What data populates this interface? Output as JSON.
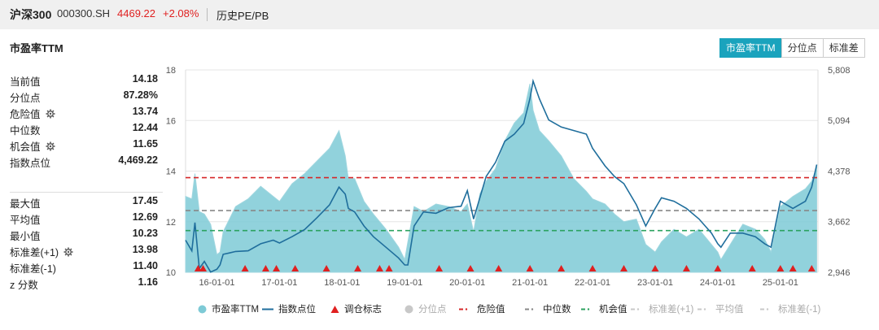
{
  "header": {
    "name": "沪深300",
    "code": "000300.SH",
    "price": "4469.22",
    "change": "+2.08%",
    "tab": "历史PE/PB"
  },
  "panel": {
    "title": "市盈率TTM",
    "buttons": [
      "市盈率TTM",
      "分位点",
      "标准差"
    ]
  },
  "stats_top": [
    {
      "label": "当前值",
      "value": "14.18",
      "gear": false
    },
    {
      "label": "分位点",
      "value": "87.28%",
      "gear": false
    },
    {
      "label": "危险值",
      "value": "13.74",
      "gear": true
    },
    {
      "label": "中位数",
      "value": "12.44",
      "gear": false
    },
    {
      "label": "机会值",
      "value": "11.65",
      "gear": true
    },
    {
      "label": "指数点位",
      "value": "4,469.22",
      "gear": false
    }
  ],
  "stats_bottom": [
    {
      "label": "最大值",
      "value": "17.45",
      "gear": false
    },
    {
      "label": "平均值",
      "value": "12.69",
      "gear": false
    },
    {
      "label": "最小值",
      "value": "10.23",
      "gear": false
    },
    {
      "label": "标准差(+1)",
      "value": "13.98",
      "gear": true
    },
    {
      "label": "标准差(-1)",
      "value": "11.40",
      "gear": false
    },
    {
      "label": "z 分数",
      "value": "1.16",
      "gear": false
    }
  ],
  "legend": [
    {
      "label": "市盈率TTM",
      "type": "dot",
      "color": "#7ecad6",
      "off": false
    },
    {
      "label": "指数点位",
      "type": "line",
      "color": "#1f6e9c",
      "off": false
    },
    {
      "label": "调仓标志",
      "type": "triangle",
      "color": "#e02020",
      "off": false
    },
    {
      "label": "分位点",
      "type": "dot",
      "color": "#c8c8c8",
      "off": true
    },
    {
      "label": "危险值",
      "type": "dash",
      "color": "#d62728",
      "off": false
    },
    {
      "label": "中位数",
      "type": "dash",
      "color": "#888888",
      "off": false
    },
    {
      "label": "机会值",
      "type": "dash",
      "color": "#2ca25f",
      "off": false
    },
    {
      "label": "标准差(+1)",
      "type": "dash",
      "color": "#c8c8c8",
      "off": true
    },
    {
      "label": "平均值",
      "type": "dash",
      "color": "#c8c8c8",
      "off": true
    },
    {
      "label": "标准差(-1)",
      "type": "dash",
      "color": "#c8c8c8",
      "off": true
    }
  ],
  "chart_data": {
    "type": "area",
    "x_tick_labels": [
      "16-01-01",
      "17-01-01",
      "18-01-01",
      "19-01-01",
      "20-01-01",
      "21-01-01",
      "22-01-01",
      "23-01-01",
      "24-01-01",
      "25-01-01"
    ],
    "left_axis": {
      "ticks": [
        "10",
        "12",
        "14",
        "16",
        "18"
      ],
      "ylim": [
        10,
        18
      ]
    },
    "right_axis": {
      "ticks": [
        "2,946",
        "3,662",
        "4,378",
        "5,094",
        "5,808"
      ],
      "ylim": [
        2946,
        5808
      ]
    },
    "grid": true,
    "legend_position": "bottom",
    "series": [
      {
        "name": "市盈率TTM",
        "axis": "left",
        "color": "#7ecad6",
        "x": [
          2015.5,
          2015.6,
          2015.65,
          2015.72,
          2015.8,
          2015.9,
          2016.0,
          2016.05,
          2016.1,
          2016.2,
          2016.3,
          2016.5,
          2016.7,
          2016.9,
          2017.0,
          2017.2,
          2017.4,
          2017.6,
          2017.8,
          2017.95,
          2018.05,
          2018.1,
          2018.2,
          2018.35,
          2018.5,
          2018.7,
          2018.9,
          2019.0,
          2019.05,
          2019.15,
          2019.3,
          2019.5,
          2019.7,
          2019.9,
          2020.0,
          2020.1,
          2020.2,
          2020.3,
          2020.45,
          2020.6,
          2020.75,
          2020.9,
          2021.0,
          2021.05,
          2021.15,
          2021.3,
          2021.5,
          2021.7,
          2021.9,
          2022.0,
          2022.2,
          2022.35,
          2022.5,
          2022.7,
          2022.85,
          2023.0,
          2023.1,
          2023.3,
          2023.5,
          2023.7,
          2023.9,
          2024.0,
          2024.05,
          2024.2,
          2024.4,
          2024.6,
          2024.75,
          2024.85,
          2025.0,
          2025.2,
          2025.4,
          2025.5,
          2025.58
        ],
        "y": [
          13.0,
          12.9,
          13.9,
          12.4,
          12.3,
          11.9,
          10.7,
          10.8,
          11.6,
          12.1,
          12.6,
          12.9,
          13.4,
          13.0,
          12.8,
          13.5,
          13.9,
          14.4,
          14.9,
          15.6,
          14.6,
          13.7,
          13.7,
          12.8,
          12.3,
          11.7,
          11.0,
          10.5,
          11.2,
          12.6,
          12.4,
          12.7,
          12.6,
          12.4,
          12.7,
          11.6,
          13.1,
          13.6,
          14.1,
          15.2,
          15.9,
          16.3,
          17.45,
          16.4,
          15.6,
          15.2,
          14.6,
          13.7,
          13.2,
          12.9,
          12.7,
          12.3,
          12.0,
          12.1,
          11.1,
          10.8,
          11.2,
          11.7,
          11.4,
          11.7,
          11.1,
          10.8,
          10.5,
          11.1,
          11.9,
          11.7,
          11.3,
          10.8,
          12.6,
          13.0,
          13.3,
          13.6,
          14.18
        ]
      },
      {
        "name": "指数点位",
        "axis": "right",
        "color": "#1f6e9c",
        "x": [
          2015.5,
          2015.6,
          2015.65,
          2015.72,
          2015.8,
          2015.9,
          2016.0,
          2016.05,
          2016.1,
          2016.2,
          2016.3,
          2016.5,
          2016.7,
          2016.9,
          2017.0,
          2017.2,
          2017.4,
          2017.6,
          2017.8,
          2017.95,
          2018.05,
          2018.1,
          2018.2,
          2018.35,
          2018.5,
          2018.7,
          2018.9,
          2019.0,
          2019.05,
          2019.15,
          2019.3,
          2019.5,
          2019.7,
          2019.9,
          2020.0,
          2020.1,
          2020.2,
          2020.3,
          2020.45,
          2020.6,
          2020.75,
          2020.9,
          2021.0,
          2021.05,
          2021.15,
          2021.3,
          2021.5,
          2021.7,
          2021.9,
          2022.0,
          2022.2,
          2022.35,
          2022.5,
          2022.7,
          2022.85,
          2023.0,
          2023.1,
          2023.3,
          2023.5,
          2023.7,
          2023.9,
          2024.0,
          2024.05,
          2024.2,
          2024.4,
          2024.6,
          2024.75,
          2024.85,
          2025.0,
          2025.2,
          2025.4,
          2025.5,
          2025.58
        ],
        "y": [
          3400,
          3250,
          3650,
          3000,
          3100,
          2950,
          2990,
          3050,
          3200,
          3220,
          3240,
          3250,
          3350,
          3400,
          3360,
          3450,
          3550,
          3720,
          3900,
          4150,
          4050,
          3850,
          3800,
          3600,
          3450,
          3300,
          3150,
          3050,
          3050,
          3600,
          3800,
          3780,
          3860,
          3880,
          4100,
          3700,
          4000,
          4300,
          4500,
          4800,
          4900,
          5050,
          5400,
          5650,
          5400,
          5100,
          5000,
          4950,
          4900,
          4700,
          4450,
          4300,
          4200,
          3900,
          3600,
          3850,
          4000,
          3950,
          3850,
          3700,
          3500,
          3350,
          3300,
          3500,
          3500,
          3450,
          3350,
          3300,
          3950,
          3850,
          3950,
          4150,
          4469.22
        ]
      }
    ],
    "reference_lines": [
      {
        "name": "危险值",
        "value": 13.74,
        "color": "#d62728"
      },
      {
        "name": "中位数",
        "value": 12.44,
        "color": "#888888"
      },
      {
        "name": "机会值",
        "value": 11.65,
        "color": "#2ca25f"
      }
    ],
    "rebalance_marks": {
      "name": "调仓标志",
      "color": "#e02020",
      "x": [
        2015.7,
        2015.78,
        2016.45,
        2016.78,
        2016.95,
        2017.25,
        2017.75,
        2018.25,
        2018.6,
        2018.75,
        2019.55,
        2020.05,
        2020.5,
        2021.0,
        2021.5,
        2022.0,
        2022.5,
        2023.0,
        2023.5,
        2024.0,
        2024.55,
        2025.0,
        2025.2,
        2025.5
      ]
    }
  }
}
